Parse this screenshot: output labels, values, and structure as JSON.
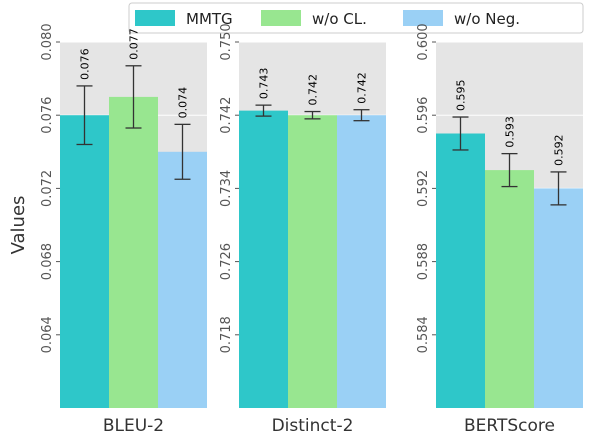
{
  "chart_data": {
    "type": "bar",
    "ylabel": "Values",
    "legend": {
      "placement": "top-center"
    },
    "grid": true,
    "series": [
      {
        "name": "MMTG",
        "color": "#2ec7c9"
      },
      {
        "name": "w/o CL.",
        "color": "#98e690"
      },
      {
        "name": "w/o Neg.",
        "color": "#9ad0f5"
      }
    ],
    "panels": [
      {
        "xlabel": "BLEU-2",
        "ylim": [
          0.06,
          0.08
        ],
        "yticks": [
          0.064,
          0.068,
          0.072,
          0.076,
          0.08
        ],
        "tick_labels": [
          "0.064",
          "0.068",
          "0.072",
          "0.076",
          "0.080"
        ],
        "values": [
          0.076,
          0.077,
          0.074
        ],
        "value_labels": [
          "0.076",
          "0.077",
          "0.074"
        ],
        "errors": [
          0.0016,
          0.0017,
          0.0015
        ]
      },
      {
        "xlabel": "Distinct-2",
        "ylim": [
          0.71,
          0.75
        ],
        "yticks": [
          0.718,
          0.726,
          0.734,
          0.742,
          0.75
        ],
        "tick_labels": [
          "0.718",
          "0.726",
          "0.734",
          "0.742",
          "0.750"
        ],
        "values": [
          0.7425,
          0.742,
          0.742
        ],
        "value_labels": [
          "0.743",
          "0.742",
          "0.742"
        ],
        "errors": [
          0.0006,
          0.0004,
          0.0006
        ]
      },
      {
        "xlabel": "BERTScore",
        "ylim": [
          0.58,
          0.6
        ],
        "yticks": [
          0.584,
          0.588,
          0.592,
          0.596,
          0.6
        ],
        "tick_labels": [
          "0.584",
          "0.588",
          "0.592",
          "0.596",
          "0.600"
        ],
        "values": [
          0.595,
          0.593,
          0.592
        ],
        "value_labels": [
          "0.595",
          "0.593",
          "0.592"
        ],
        "errors": [
          0.0009,
          0.0009,
          0.0009
        ]
      }
    ]
  }
}
